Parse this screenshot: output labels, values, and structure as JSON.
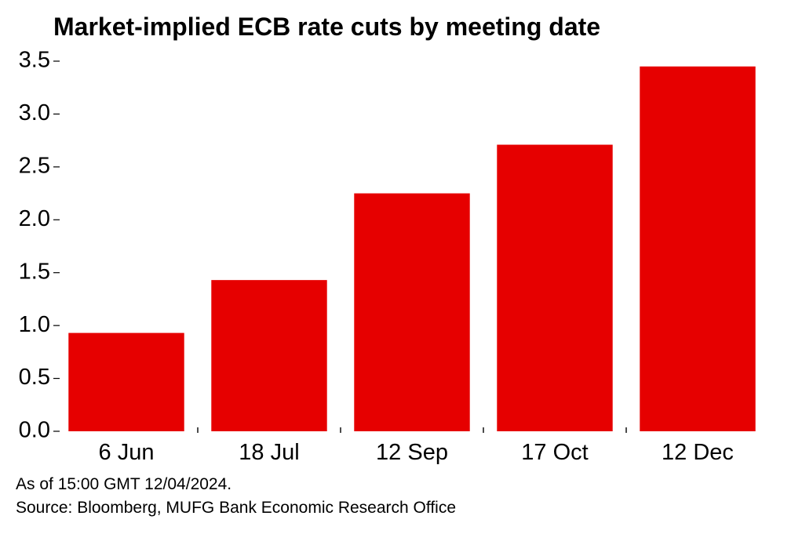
{
  "chart_data": {
    "type": "bar",
    "title": "Market-implied ECB rate cuts by meeting date",
    "categories": [
      "6 Jun",
      "18 Jul",
      "12 Sep",
      "17 Oct",
      "12 Dec"
    ],
    "values": [
      0.93,
      1.43,
      2.25,
      2.71,
      3.45
    ],
    "xlabel": "",
    "ylabel": "",
    "ylim": [
      0,
      3.5
    ],
    "yticks": [
      "0.0",
      "0.5",
      "1.0",
      "1.5",
      "2.0",
      "2.5",
      "3.0",
      "3.5"
    ],
    "grid": false,
    "legend": "none",
    "bar_color": "#e60000"
  },
  "notes": {
    "as_of": "As of 15:00 GMT 12/04/2024.",
    "source": "Source: Bloomberg, MUFG Bank Economic Research Office"
  }
}
